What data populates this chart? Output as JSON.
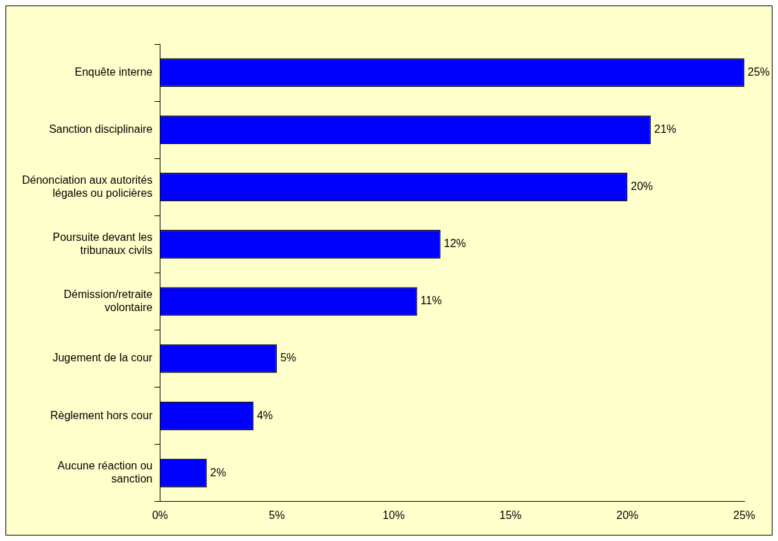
{
  "chart_data": {
    "type": "bar",
    "orientation": "horizontal",
    "categories": [
      "Enquête interne",
      "Sanction disciplinaire",
      "Dénonciation aux autorités légales ou policières",
      "Poursuite devant les tribunaux civils",
      "Démission/retraite volontaire",
      "Jugement de la cour",
      "Règlement hors cour",
      "Aucune réaction ou sanction"
    ],
    "values": [
      25,
      21,
      20,
      12,
      11,
      5,
      4,
      2
    ],
    "value_labels": [
      "25%",
      "21%",
      "20%",
      "12%",
      "11%",
      "5%",
      "4%",
      "2%"
    ],
    "color": "#0000ff",
    "xlim": [
      0,
      25
    ],
    "xticks": [
      {
        "value": 0,
        "label": "0%"
      },
      {
        "value": 5,
        "label": "5%"
      },
      {
        "value": 10,
        "label": "10%"
      },
      {
        "value": 15,
        "label": "15%"
      },
      {
        "value": 20,
        "label": "20%"
      },
      {
        "value": 25,
        "label": "25%"
      }
    ],
    "grid": false,
    "legend": false
  }
}
